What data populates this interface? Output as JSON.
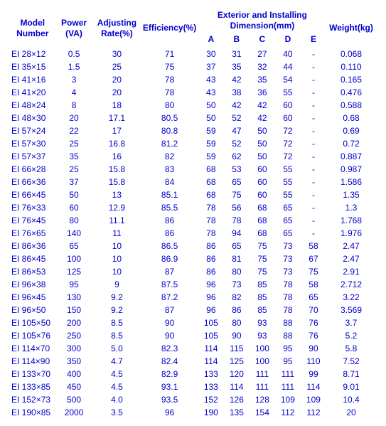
{
  "headers": {
    "model": "Model\nNumber",
    "power": "Power\n(VA)",
    "adj": "Adjusting\nRate(%)",
    "eff": "Efficiency(%)",
    "dim_group": "Exterior and Installing\nDimension(mm)",
    "dim_A": "A",
    "dim_B": "B",
    "dim_C": "C",
    "dim_D": "D",
    "dim_E": "E",
    "weight": "Weight(kg)"
  },
  "rows": [
    {
      "model": "EI 28×12",
      "power": "0.5",
      "adj": "30",
      "eff": "71",
      "A": "30",
      "B": "31",
      "C": "27",
      "D": "40",
      "E": "-",
      "wt": "0.068"
    },
    {
      "model": "EI 35×15",
      "power": "1.5",
      "adj": "25",
      "eff": "75",
      "A": "37",
      "B": "35",
      "C": "32",
      "D": "44",
      "E": "-",
      "wt": "0.110"
    },
    {
      "model": "EI 41×16",
      "power": "3",
      "adj": "20",
      "eff": "78",
      "A": "43",
      "B": "42",
      "C": "35",
      "D": "54",
      "E": "-",
      "wt": "0.165"
    },
    {
      "model": "EI 41×20",
      "power": "4",
      "adj": "20",
      "eff": "78",
      "A": "43",
      "B": "38",
      "C": "36",
      "D": "55",
      "E": "-",
      "wt": "0.476"
    },
    {
      "model": "EI 48×24",
      "power": "8",
      "adj": "18",
      "eff": "80",
      "A": "50",
      "B": "42",
      "C": "42",
      "D": "60",
      "E": "-",
      "wt": "0.588"
    },
    {
      "model": "EI 48×30",
      "power": "20",
      "adj": "17.1",
      "eff": "80.5",
      "A": "50",
      "B": "52",
      "C": "42",
      "D": "60",
      "E": "-",
      "wt": "0.68"
    },
    {
      "model": "EI 57×24",
      "power": "22",
      "adj": "17",
      "eff": "80.8",
      "A": "59",
      "B": "47",
      "C": "50",
      "D": "72",
      "E": "-",
      "wt": "0.69"
    },
    {
      "model": "EI 57×30",
      "power": "25",
      "adj": "16.8",
      "eff": "81.2",
      "A": "59",
      "B": "52",
      "C": "50",
      "D": "72",
      "E": "-",
      "wt": "0.72"
    },
    {
      "model": "EI 57×37",
      "power": "35",
      "adj": "16",
      "eff": "82",
      "A": "59",
      "B": "62",
      "C": "50",
      "D": "72",
      "E": "-",
      "wt": "0.887"
    },
    {
      "model": "EI 66×28",
      "power": "25",
      "adj": "15.8",
      "eff": "83",
      "A": "68",
      "B": "53",
      "C": "60",
      "D": "55",
      "E": "-",
      "wt": "0.987"
    },
    {
      "model": "EI 66×36",
      "power": "37",
      "adj": "15.8",
      "eff": "84",
      "A": "68",
      "B": "65",
      "C": "60",
      "D": "55",
      "E": "-",
      "wt": "1.586"
    },
    {
      "model": "EI 66×45",
      "power": "50",
      "adj": "13",
      "eff": "85.1",
      "A": "68",
      "B": "75",
      "C": "60",
      "D": "55",
      "E": "-",
      "wt": "1.35"
    },
    {
      "model": "EI 76×33",
      "power": "60",
      "adj": "12.9",
      "eff": "85.5",
      "A": "78",
      "B": "56",
      "C": "68",
      "D": "65",
      "E": "-",
      "wt": "1.3"
    },
    {
      "model": "EI 76×45",
      "power": "80",
      "adj": "11.1",
      "eff": "86",
      "A": "78",
      "B": "78",
      "C": "68",
      "D": "65",
      "E": "-",
      "wt": "1.768"
    },
    {
      "model": "EI 76×65",
      "power": "140",
      "adj": "11",
      "eff": "86",
      "A": "78",
      "B": "94",
      "C": "68",
      "D": "65",
      "E": "-",
      "wt": "1.976"
    },
    {
      "model": "EI 86×36",
      "power": "65",
      "adj": "10",
      "eff": "86.5",
      "A": "86",
      "B": "65",
      "C": "75",
      "D": "73",
      "E": "58",
      "wt": "2.47"
    },
    {
      "model": "EI 86×45",
      "power": "100",
      "adj": "10",
      "eff": "86.9",
      "A": "86",
      "B": "81",
      "C": "75",
      "D": "73",
      "E": "67",
      "wt": "2.47"
    },
    {
      "model": "EI 86×53",
      "power": "125",
      "adj": "10",
      "eff": "87",
      "A": "86",
      "B": "80",
      "C": "75",
      "D": "73",
      "E": "75",
      "wt": "2.91"
    },
    {
      "model": "EI 96×38",
      "power": "95",
      "adj": "9",
      "eff": "87.5",
      "A": "96",
      "B": "73",
      "C": "85",
      "D": "78",
      "E": "58",
      "wt": "2.712"
    },
    {
      "model": "EI 96×45",
      "power": "130",
      "adj": "9.2",
      "eff": "87.2",
      "A": "96",
      "B": "82",
      "C": "85",
      "D": "78",
      "E": "65",
      "wt": "3.22"
    },
    {
      "model": "EI 96×50",
      "power": "150",
      "adj": "9.2",
      "eff": "87",
      "A": "96",
      "B": "86",
      "C": "85",
      "D": "78",
      "E": "70",
      "wt": "3.569"
    },
    {
      "model": "EI 105×50",
      "power": "200",
      "adj": "8.5",
      "eff": "90",
      "A": "105",
      "B": "80",
      "C": "93",
      "D": "88",
      "E": "76",
      "wt": "3.7"
    },
    {
      "model": "EI 105×76",
      "power": "250",
      "adj": "8.5",
      "eff": "90",
      "A": "105",
      "B": "90",
      "C": "93",
      "D": "88",
      "E": "76",
      "wt": "5.2"
    },
    {
      "model": "EI 114×70",
      "power": "300",
      "adj": "5.0",
      "eff": "82.3",
      "A": "114",
      "B": "115",
      "C": "100",
      "D": "95",
      "E": "90",
      "wt": "5.8"
    },
    {
      "model": "EI 114×90",
      "power": "350",
      "adj": "4.7",
      "eff": "82.4",
      "A": "114",
      "B": "125",
      "C": "100",
      "D": "95",
      "E": "110",
      "wt": "7.52"
    },
    {
      "model": "EI 133×70",
      "power": "400",
      "adj": "4.5",
      "eff": "82.9",
      "A": "133",
      "B": "120",
      "C": "111",
      "D": "111",
      "E": "99",
      "wt": "8.71"
    },
    {
      "model": "EI 133×85",
      "power": "450",
      "adj": "4.5",
      "eff": "93.1",
      "A": "133",
      "B": "114",
      "C": "111",
      "D": "111",
      "E": "114",
      "wt": "9.01"
    },
    {
      "model": "EI 152×73",
      "power": "500",
      "adj": "4.0",
      "eff": "93.5",
      "A": "152",
      "B": "126",
      "C": "128",
      "D": "109",
      "E": "109",
      "wt": "10.4"
    },
    {
      "model": "EI 190×85",
      "power": "2000",
      "adj": "3.5",
      "eff": "96",
      "A": "190",
      "B": "135",
      "C": "154",
      "D": "112",
      "E": "112",
      "wt": "20"
    }
  ]
}
